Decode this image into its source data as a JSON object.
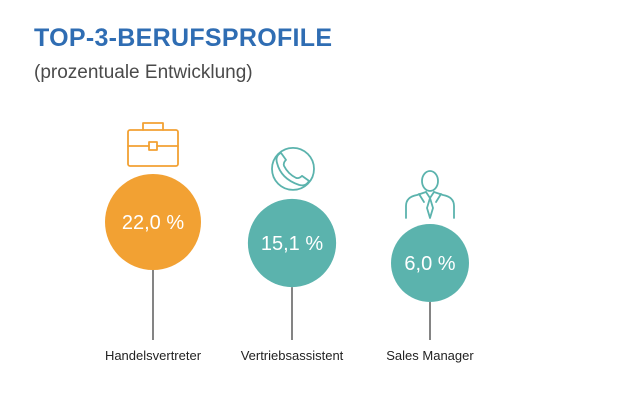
{
  "header": {
    "title": "TOP-3-BERUFSPROFILE",
    "subtitle": "(prozentuale Entwicklung)"
  },
  "chart_data": {
    "type": "bubble",
    "title": "TOP-3-BERUFSPROFILE",
    "subtitle": "(prozentuale Entwicklung)",
    "unit": "%",
    "categories": [
      "Handelsvertreter",
      "Vertriebsassistent",
      "Sales Manager"
    ],
    "values": [
      22.0,
      15.1,
      6.0
    ],
    "value_labels": [
      "22,0 %",
      "15,1 %",
      "6,0 %"
    ],
    "icons": [
      "briefcase-icon",
      "phone-icon",
      "manager-icon"
    ],
    "colors": [
      "#f2a133",
      "#5bb3ad",
      "#5bb3ad"
    ]
  }
}
